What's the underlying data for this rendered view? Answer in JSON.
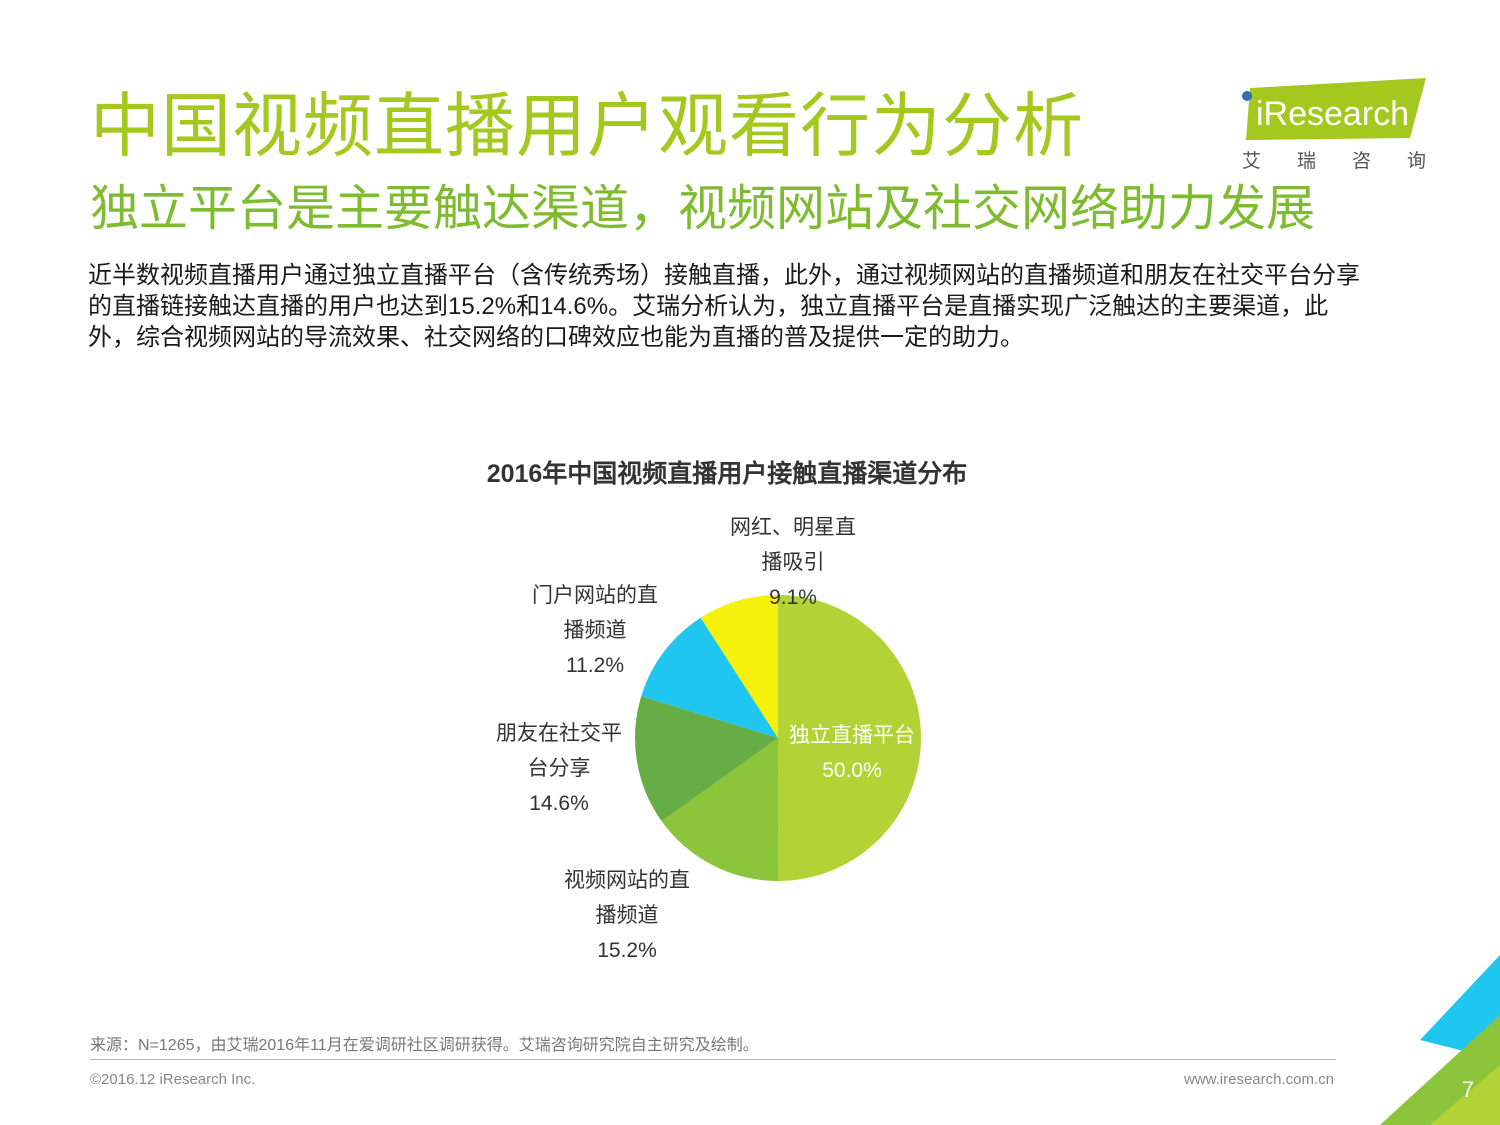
{
  "header": {
    "title": "中国视频直播用户观看行为分析",
    "subtitle": "独立平台是主要触达渠道，视频网站及社交网络助力发展",
    "description": [
      "近半数视频直播用户通过独立直播平台（含传统秀场）接触直播，此外，通过视频网站的直播频道和朋友在社交平台分享",
      "的直播链接触达直播的用户也达到15.2%和14.6%。艾瑞分析认为，独立直播平台是直播实现广泛触达的主要渠道，此",
      "外，综合视频网站的导流效果、社交网络的口碑效应也能为直播的普及提供一定的助力。"
    ]
  },
  "logo": {
    "brand": "iResearch",
    "cn_chars": [
      "艾",
      "瑞",
      "咨",
      "询"
    ],
    "accent_color": "#a4c81e",
    "dot_color": "#2f6fb6"
  },
  "chart_data": {
    "type": "pie",
    "title": "2016年中国视频直播用户接触直播渠道分布",
    "slices": [
      {
        "label_lines": [
          "独立直播平台"
        ],
        "value": 50.0,
        "value_label": "50.0%",
        "color": "#b2d235"
      },
      {
        "label_lines": [
          "视频网站的直",
          "播频道"
        ],
        "value": 15.2,
        "value_label": "15.2%",
        "color": "#8cc43c"
      },
      {
        "label_lines": [
          "朋友在社交平",
          "台分享"
        ],
        "value": 14.6,
        "value_label": "14.6%",
        "color": "#65ad44"
      },
      {
        "label_lines": [
          "门户网站的直",
          "播频道"
        ],
        "value": 11.2,
        "value_label": "11.2%",
        "color": "#1ec6f0"
      },
      {
        "label_lines": [
          "网红、明星直",
          "播吸引"
        ],
        "value": 9.1,
        "value_label": "9.1%",
        "color": "#f5f10a"
      }
    ]
  },
  "footer": {
    "source": "来源：N=1265，由艾瑞2016年11月在爱调研社区调研获得。艾瑞咨询研究院自主研究及绘制。",
    "copyright": "©2016.12 iResearch Inc.",
    "website": "www.iresearch.com.cn",
    "page_number": "7"
  }
}
